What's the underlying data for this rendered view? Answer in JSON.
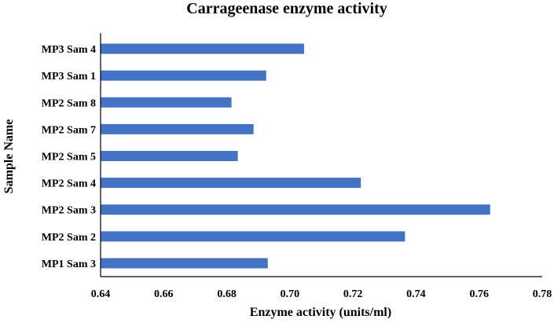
{
  "chart_data": {
    "type": "bar",
    "orientation": "horizontal",
    "title": "Carrageenase enzyme activity",
    "xlabel": "Enzyme activity (units/ml)",
    "ylabel": "Sample Name",
    "categories": [
      "MP3 Sam 4",
      "MP3 Sam 1",
      "MP2 Sam 8",
      "MP2 Sam 7",
      "MP2 Sam 5",
      "MP2 Sam 4",
      "MP2 Sam 3",
      "MP2 Sam 2",
      "MP1 Sam 3"
    ],
    "values": [
      0.7045,
      0.6925,
      0.6815,
      0.6885,
      0.6835,
      0.7225,
      0.7635,
      0.7365,
      0.693
    ],
    "xlim": [
      0.64,
      0.78
    ],
    "xticks": [
      "0.64",
      "0.66",
      "0.68",
      "0.70",
      "0.72",
      "0.74",
      "0.76",
      "0.78"
    ],
    "grid": false,
    "legend": "none",
    "bar_color": "#4472C4"
  }
}
